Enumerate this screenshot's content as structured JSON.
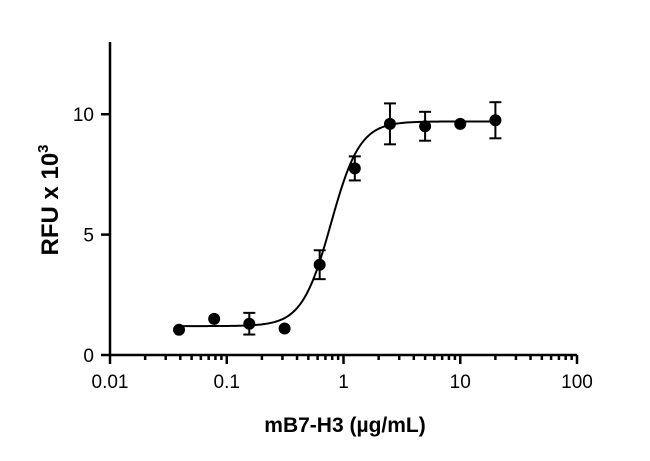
{
  "chart_data": {
    "type": "scatter",
    "xlabel": "mB7-H3 (µg/mL)",
    "ylabel_base": "RFU x 10",
    "ylabel_exponent": "3",
    "x_scale": "log",
    "xlim": [
      0.01,
      100
    ],
    "ylim": [
      0,
      13
    ],
    "x_ticks": [
      0.01,
      0.1,
      1,
      10,
      100
    ],
    "x_tick_labels": [
      "0.01",
      "0.1",
      "1",
      "10",
      "100"
    ],
    "y_ticks": [
      0,
      5,
      10
    ],
    "y_tick_labels": [
      "0",
      "5",
      "10"
    ],
    "grid": false,
    "legend": "none",
    "points": [
      {
        "x": 0.039,
        "y": 1.05,
        "err": 0
      },
      {
        "x": 0.078,
        "y": 1.5,
        "err": 0
      },
      {
        "x": 0.156,
        "y": 1.3,
        "err": 0.45
      },
      {
        "x": 0.313,
        "y": 1.1,
        "err": 0
      },
      {
        "x": 0.625,
        "y": 3.75,
        "err": 0.6
      },
      {
        "x": 1.25,
        "y": 7.75,
        "err": 0.5
      },
      {
        "x": 2.5,
        "y": 9.6,
        "err": 0.85
      },
      {
        "x": 5,
        "y": 9.5,
        "err": 0.6
      },
      {
        "x": 10,
        "y": 9.6,
        "err": 0
      },
      {
        "x": 20,
        "y": 9.75,
        "err": 0.75
      }
    ],
    "fit": {
      "model": "4PL",
      "bottom": 1.2,
      "top": 9.7,
      "ec50": 0.78,
      "hill": 3.5,
      "x_range": [
        0.039,
        20
      ]
    }
  }
}
